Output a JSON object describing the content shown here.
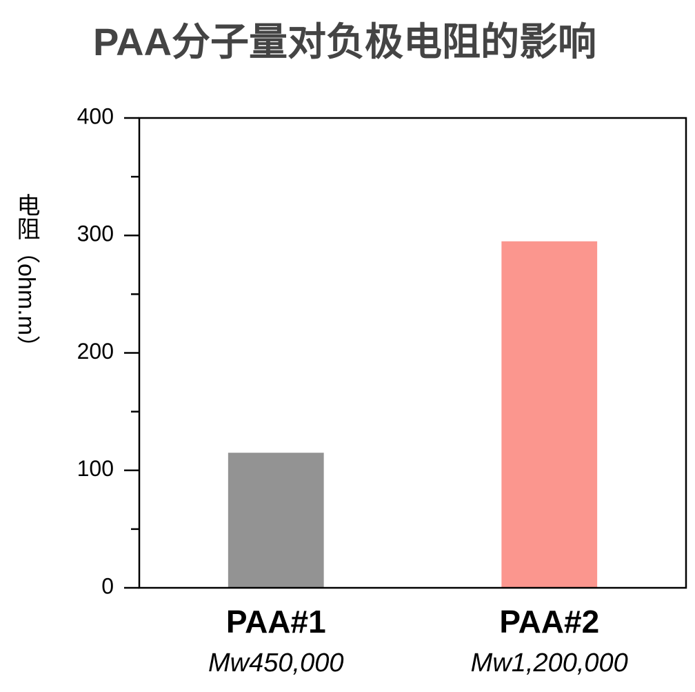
{
  "chart_data": {
    "type": "bar",
    "title": "PAA分子量对负极电阻的影响",
    "y_label": "电阻（ohm.m）",
    "categories": [
      "PAA#1",
      "PAA#2"
    ],
    "category_sublabels": [
      "Mw450,000",
      "Mw1,200,000"
    ],
    "values": [
      115,
      295
    ],
    "colors": [
      "#939393",
      "#fb968e"
    ],
    "ylim": [
      0,
      400
    ],
    "yticks": [
      0,
      100,
      200,
      300,
      400
    ],
    "minor_yticks": [
      50,
      150,
      250,
      350
    ],
    "grid": false
  }
}
